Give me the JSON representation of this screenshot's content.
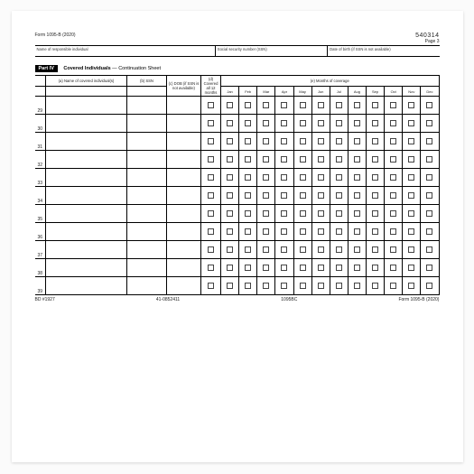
{
  "sku": "540314",
  "page_label": "Page 3",
  "form_ref_top": "Form 1095-B   (2020)",
  "headers": {
    "name": "Name of responsible individual",
    "ssn": "Social security number (SSN)",
    "dob": "Date of birth (if SSN is not available)"
  },
  "part": {
    "tag": "Part IV",
    "title": "Covered Individuals",
    "sub": " — Continuation Sheet"
  },
  "cols": {
    "a": "(a) Name of covered individual(s)",
    "b": "(b) SSN",
    "c": "(c) DOB (if SSN is not available)",
    "d": "(d) Covered all 12 months",
    "e": "(e) Months of coverage"
  },
  "months": [
    "Jan",
    "Feb",
    "Mar",
    "Apr",
    "May",
    "Jun",
    "Jul",
    "Aug",
    "Sep",
    "Oct",
    "Nov",
    "Dec"
  ],
  "rows": [
    "29",
    "30",
    "31",
    "32",
    "33",
    "34",
    "35",
    "36",
    "37",
    "38",
    "39"
  ],
  "footer": {
    "l": "BD #1927",
    "c1": "41-0852411",
    "c2": "1095BC",
    "r": "Form 1095-B (2020)"
  },
  "colors": {
    "box": "#444444"
  }
}
